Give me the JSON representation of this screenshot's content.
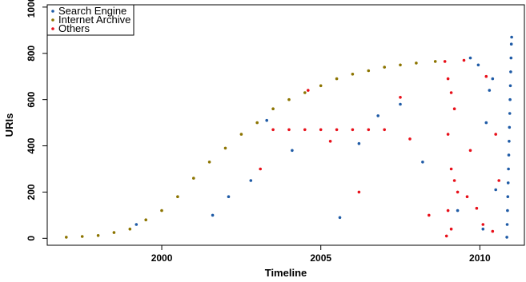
{
  "chart_data": {
    "type": "scatter",
    "title": "",
    "xlabel": "Timeline",
    "ylabel": "URIs",
    "xlim": [
      1996.4,
      2011.4
    ],
    "ylim": [
      -30,
      1010
    ],
    "xticks": [
      2000,
      2005,
      2010
    ],
    "yticks": [
      0,
      200,
      400,
      600,
      800,
      1000
    ],
    "legend_position": "top-left",
    "grid": false,
    "series": [
      {
        "name": "Search Engine",
        "color": "#1F5BA6",
        "points": [
          [
            2010.85,
            5
          ],
          [
            2010.86,
            60
          ],
          [
            2010.87,
            120
          ],
          [
            2010.88,
            180
          ],
          [
            2010.89,
            240
          ],
          [
            2010.9,
            300
          ],
          [
            2010.91,
            360
          ],
          [
            2010.92,
            420
          ],
          [
            2010.93,
            480
          ],
          [
            2010.94,
            540
          ],
          [
            2010.95,
            600
          ],
          [
            2010.96,
            660
          ],
          [
            2010.97,
            720
          ],
          [
            2010.98,
            780
          ],
          [
            2010.99,
            840
          ],
          [
            2011.0,
            870
          ],
          [
            2009.7,
            780
          ],
          [
            2009.95,
            750
          ],
          [
            2010.4,
            690
          ],
          [
            2010.2,
            500
          ],
          [
            2007.5,
            580
          ],
          [
            2006.2,
            410
          ],
          [
            2004.1,
            380
          ],
          [
            2003.3,
            510
          ],
          [
            2002.8,
            250
          ],
          [
            2001.6,
            100
          ],
          [
            1999.2,
            60
          ],
          [
            2005.6,
            90
          ],
          [
            2008.2,
            330
          ],
          [
            2009.3,
            120
          ],
          [
            2010.1,
            40
          ],
          [
            2010.5,
            210
          ],
          [
            2010.3,
            640
          ],
          [
            2006.8,
            530
          ],
          [
            2002.1,
            180
          ]
        ]
      },
      {
        "name": "Internet Archive",
        "color": "#8C7400",
        "points": [
          [
            1997.0,
            5
          ],
          [
            1997.5,
            8
          ],
          [
            1998.0,
            12
          ],
          [
            1998.5,
            25
          ],
          [
            1999.0,
            40
          ],
          [
            1999.5,
            80
          ],
          [
            2000.0,
            120
          ],
          [
            2000.5,
            180
          ],
          [
            2001.0,
            260
          ],
          [
            2001.5,
            330
          ],
          [
            2002.0,
            390
          ],
          [
            2002.5,
            450
          ],
          [
            2003.0,
            500
          ],
          [
            2003.5,
            560
          ],
          [
            2004.0,
            600
          ],
          [
            2004.5,
            630
          ],
          [
            2005.0,
            660
          ],
          [
            2005.5,
            690
          ],
          [
            2006.0,
            710
          ],
          [
            2006.5,
            725
          ],
          [
            2007.0,
            740
          ],
          [
            2007.5,
            750
          ],
          [
            2008.0,
            758
          ],
          [
            2008.6,
            765
          ]
        ]
      },
      {
        "name": "Others",
        "color": "#E8101A",
        "points": [
          [
            2003.5,
            470
          ],
          [
            2004.0,
            470
          ],
          [
            2004.5,
            470
          ],
          [
            2005.0,
            470
          ],
          [
            2005.5,
            470
          ],
          [
            2006.0,
            470
          ],
          [
            2006.5,
            470
          ],
          [
            2007.0,
            470
          ],
          [
            2007.5,
            610
          ],
          [
            2004.6,
            640
          ],
          [
            2008.9,
            765
          ],
          [
            2009.0,
            690
          ],
          [
            2009.1,
            630
          ],
          [
            2009.2,
            560
          ],
          [
            2009.0,
            450
          ],
          [
            2009.1,
            300
          ],
          [
            2009.2,
            250
          ],
          [
            2009.3,
            200
          ],
          [
            2009.0,
            120
          ],
          [
            2009.1,
            40
          ],
          [
            2008.95,
            10
          ],
          [
            2009.5,
            770
          ],
          [
            2009.7,
            380
          ],
          [
            2009.9,
            130
          ],
          [
            2010.1,
            60
          ],
          [
            2010.2,
            700
          ],
          [
            2010.5,
            450
          ],
          [
            2010.6,
            250
          ],
          [
            2010.4,
            30
          ],
          [
            2009.6,
            180
          ],
          [
            2008.4,
            100
          ],
          [
            2007.8,
            430
          ],
          [
            2006.2,
            200
          ],
          [
            2005.3,
            420
          ],
          [
            2003.1,
            300
          ]
        ]
      }
    ]
  }
}
